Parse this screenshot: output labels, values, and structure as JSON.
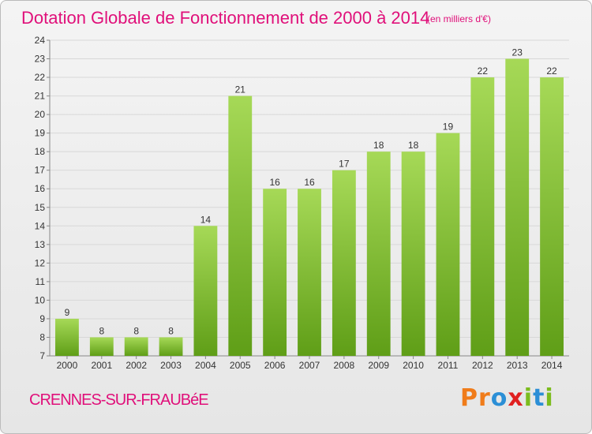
{
  "header": {
    "title": "Dotation Globale de Fonctionnement de 2000 à 2014",
    "unit_note": "(en milliers d'€)"
  },
  "footer": {
    "commune": "CRENNES-SUR-FRAUBéE",
    "brand": "Proxiti",
    "brand_letters": [
      {
        "ch": "P",
        "color": "#f07c1a"
      },
      {
        "ch": "r",
        "color": "#f07c1a"
      },
      {
        "ch": "o",
        "color": "#2c8fd6"
      },
      {
        "ch": "x",
        "color": "#e02020"
      },
      {
        "ch": "i",
        "color": "#7cbc1e"
      },
      {
        "ch": "t",
        "color": "#2c8fd6"
      },
      {
        "ch": "i",
        "color": "#7cbc1e"
      }
    ]
  },
  "colors": {
    "title": "#e0107a",
    "bar_light": "#a6d957",
    "bar_dark": "#5f9e17",
    "grid": "#d8d8d8",
    "axis_text": "#333333"
  },
  "chart_data": {
    "type": "bar",
    "title": "Dotation Globale de Fonctionnement de 2000 à 2014",
    "subtitle": "(en milliers d'€)",
    "categories": [
      "2000",
      "2001",
      "2002",
      "2003",
      "2004",
      "2005",
      "2006",
      "2007",
      "2008",
      "2009",
      "2010",
      "2011",
      "2012",
      "2013",
      "2014"
    ],
    "values": [
      9,
      8,
      8,
      8,
      14,
      21,
      16,
      16,
      17,
      18,
      18,
      19,
      22,
      23,
      22
    ],
    "ylim": [
      7,
      24
    ],
    "yticks": [
      7,
      8,
      9,
      10,
      11,
      12,
      13,
      14,
      15,
      16,
      17,
      18,
      19,
      20,
      21,
      22,
      23,
      24
    ],
    "xlabel": "",
    "ylabel": "",
    "grid": true,
    "data_labels": true
  }
}
